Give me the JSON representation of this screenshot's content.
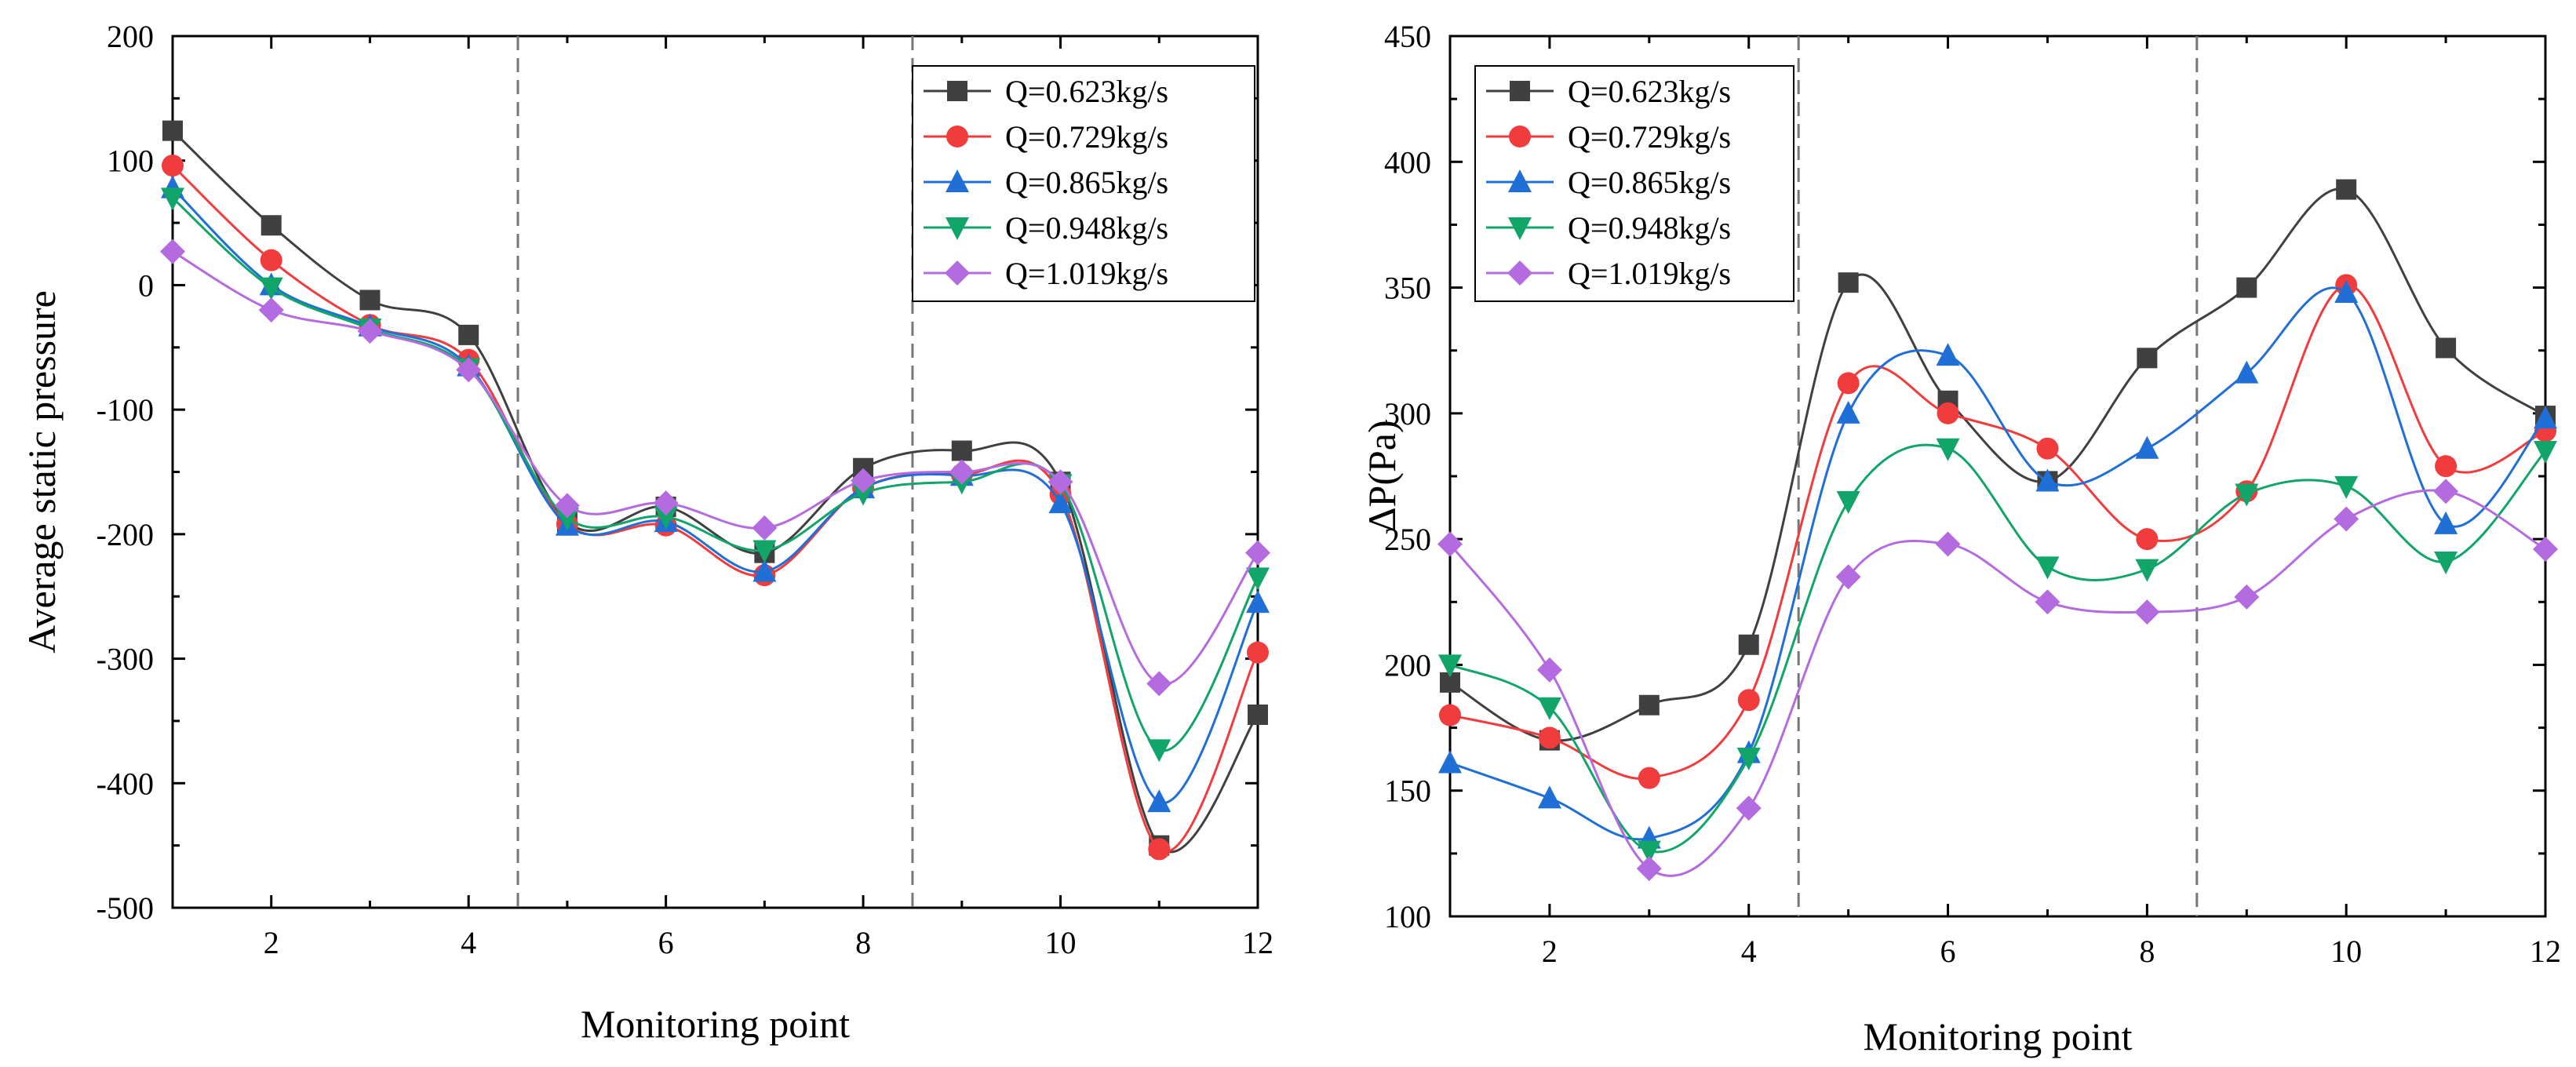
{
  "colors": {
    "Q=0.623kg/s": "#404040",
    "Q=0.729kg/s": "#f03c3c",
    "Q=0.865kg/s": "#1f6fd6",
    "Q=0.948kg/s": "#12a56a",
    "Q=1.019kg/s": "#b56be0",
    "divider": "#777777",
    "axis": "#000000"
  },
  "chart_data": [
    {
      "type": "line",
      "title": "",
      "xlabel": "Monitoring point",
      "ylabel": "Average static pressure",
      "xlim": [
        1,
        12
      ],
      "ylim": [
        -500,
        200
      ],
      "xticks": [
        2,
        4,
        6,
        8,
        10,
        12
      ],
      "yticks": [
        -500,
        -400,
        -300,
        -200,
        -100,
        0,
        100,
        200
      ],
      "grid": false,
      "legend": "top-right",
      "dividers": [
        4.5,
        8.5
      ],
      "x": [
        1,
        2,
        3,
        4,
        5,
        6,
        7,
        8,
        9,
        10,
        11,
        12
      ],
      "series": [
        {
          "name": "Q=0.623kg/s",
          "marker": "square",
          "values": [
            124,
            48,
            -12,
            -40,
            -190,
            -178,
            -215,
            -147,
            -133,
            -158,
            -450,
            -345
          ]
        },
        {
          "name": "Q=0.729kg/s",
          "marker": "circle",
          "values": [
            96,
            20,
            -32,
            -60,
            -192,
            -193,
            -233,
            -163,
            -152,
            -168,
            -453,
            -295
          ]
        },
        {
          "name": "Q=0.865kg/s",
          "marker": "triangle-up",
          "values": [
            78,
            0,
            -33,
            -65,
            -193,
            -190,
            -230,
            -163,
            -153,
            -175,
            -415,
            -255
          ]
        },
        {
          "name": "Q=0.948kg/s",
          "marker": "triangle-down",
          "values": [
            70,
            -2,
            -35,
            -67,
            -187,
            -186,
            -213,
            -167,
            -158,
            -160,
            -373,
            -235
          ]
        },
        {
          "name": "Q=1.019kg/s",
          "marker": "diamond",
          "values": [
            27,
            -20,
            -37,
            -68,
            -177,
            -175,
            -195,
            -157,
            -150,
            -158,
            -320,
            -215
          ]
        }
      ]
    },
    {
      "type": "line",
      "title": "",
      "xlabel": "Monitoring point",
      "ylabel": "ΔP(Pa)",
      "xlim": [
        1,
        12
      ],
      "ylim": [
        100,
        450
      ],
      "xticks": [
        2,
        4,
        6,
        8,
        10,
        12
      ],
      "yticks": [
        100,
        150,
        200,
        250,
        300,
        350,
        400,
        450
      ],
      "grid": false,
      "legend": "top-left",
      "dividers": [
        4.5,
        8.5
      ],
      "x": [
        1,
        2,
        3,
        4,
        5,
        6,
        7,
        8,
        9,
        10,
        11,
        12
      ],
      "series": [
        {
          "name": "Q=0.623kg/s",
          "marker": "square",
          "values": [
            193,
            170,
            184,
            208,
            352,
            305,
            273,
            322,
            350,
            389,
            326,
            299
          ]
        },
        {
          "name": "Q=0.729kg/s",
          "marker": "circle",
          "values": [
            180,
            171,
            155,
            186,
            312,
            300,
            286,
            250,
            269,
            351,
            279,
            293
          ]
        },
        {
          "name": "Q=0.865kg/s",
          "marker": "triangle-up",
          "values": [
            161,
            147,
            131,
            165,
            300,
            323,
            273,
            286,
            316,
            348,
            256,
            298
          ]
        },
        {
          "name": "Q=0.948kg/s",
          "marker": "triangle-down",
          "values": [
            200,
            183,
            126,
            163,
            265,
            286,
            239,
            238,
            268,
            271,
            241,
            285
          ]
        },
        {
          "name": "Q=1.019kg/s",
          "marker": "diamond",
          "values": [
            248,
            198,
            119,
            143,
            235,
            248,
            225,
            221,
            227,
            258,
            269,
            246
          ]
        }
      ]
    }
  ]
}
